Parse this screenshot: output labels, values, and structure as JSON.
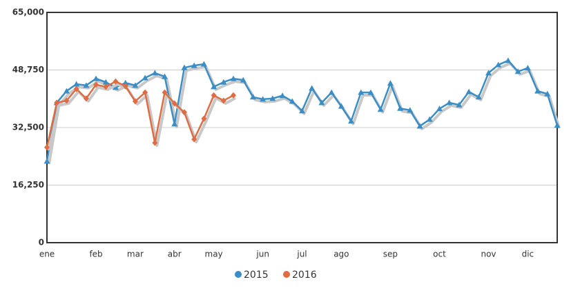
{
  "chart_data": {
    "type": "line",
    "categories": [
      "ene",
      null,
      null,
      null,
      null,
      "feb",
      null,
      null,
      null,
      "mar",
      null,
      null,
      null,
      "abr",
      null,
      null,
      null,
      "may",
      null,
      null,
      null,
      null,
      "jun",
      null,
      null,
      null,
      "jul",
      null,
      null,
      null,
      "ago",
      null,
      null,
      null,
      null,
      "sep",
      null,
      null,
      null,
      null,
      "oct",
      null,
      null,
      null,
      null,
      "nov",
      null,
      null,
      null,
      "dic",
      null,
      null,
      null
    ],
    "series": [
      {
        "name": "2015",
        "color": "#3a8dc5",
        "values": [
          23000,
          39500,
          42800,
          44750,
          44400,
          46300,
          45300,
          43800,
          45100,
          44400,
          46500,
          47900,
          46900,
          33500,
          49400,
          50000,
          50400,
          44000,
          45300,
          46300,
          45900,
          41100,
          40500,
          40700,
          41500,
          39900,
          37200,
          43600,
          39500,
          42400,
          38500,
          34300,
          42400,
          42400,
          37600,
          45000,
          37900,
          37400,
          32900,
          34800,
          37800,
          39500,
          38900,
          42600,
          41100,
          47900,
          50200,
          51400,
          48300,
          49300,
          42800,
          42000,
          33100
        ]
      },
      {
        "name": "2016",
        "color": "#e06c43",
        "values": [
          26900,
          39500,
          40100,
          43400,
          40700,
          44600,
          44000,
          45500,
          44200,
          39900,
          42400,
          28200,
          42400,
          39300,
          36800,
          29200,
          35000,
          41600,
          40100,
          41600,
          null,
          null,
          null,
          null,
          null,
          null,
          null,
          null,
          null,
          null,
          null,
          null,
          null,
          null,
          null,
          null,
          null,
          null,
          null,
          null,
          null,
          null,
          null,
          null,
          null,
          null,
          null,
          null,
          null,
          null,
          null,
          null,
          null
        ]
      }
    ],
    "ylim": [
      0,
      65000
    ],
    "yticks": [
      {
        "value": 0,
        "label": "0"
      },
      {
        "value": 16250,
        "label": "16,250"
      },
      {
        "value": 32500,
        "label": "32,500"
      },
      {
        "value": 48750,
        "label": "48,750"
      },
      {
        "value": 65000,
        "label": "65,000"
      }
    ],
    "grid": true
  }
}
